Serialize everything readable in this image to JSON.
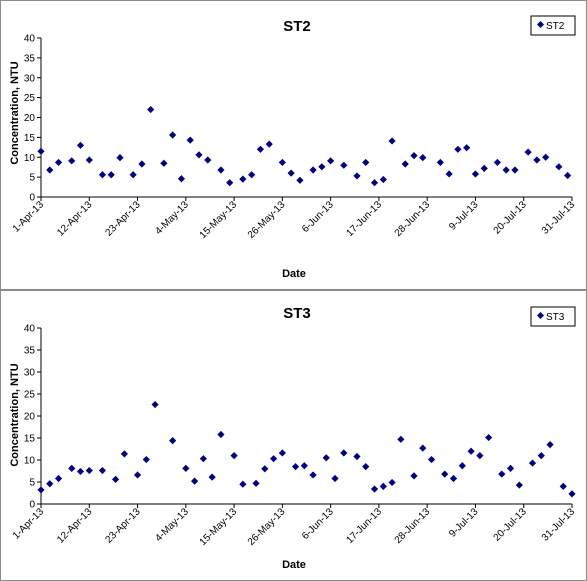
{
  "chart_data": [
    {
      "type": "scatter",
      "title": "ST2",
      "xlabel": "Date",
      "ylabel": "Concentration, NTU",
      "ylim": [
        0,
        40
      ],
      "y_ticks": [
        0,
        5,
        10,
        15,
        20,
        25,
        30,
        35,
        40
      ],
      "xlim": [
        "2013-04-01",
        "2013-07-31"
      ],
      "x_tick_labels": [
        "1-Apr-13",
        "12-Apr-13",
        "23-Apr-13",
        "4-May-13",
        "15-May-13",
        "26-May-13",
        "6-Jun-13",
        "17-Jun-13",
        "28-Jun-13",
        "9-Jul-13",
        "20-Jul-13",
        "31-Jul-13"
      ],
      "grid": false,
      "legend": "top-right",
      "marker_color": "#000080",
      "series": [
        {
          "name": "ST2",
          "points": [
            {
              "x": "2013-04-01",
              "y": 11.5
            },
            {
              "x": "2013-04-03",
              "y": 6.8
            },
            {
              "x": "2013-04-05",
              "y": 8.7
            },
            {
              "x": "2013-04-08",
              "y": 9.1
            },
            {
              "x": "2013-04-10",
              "y": 13.0
            },
            {
              "x": "2013-04-12",
              "y": 9.3
            },
            {
              "x": "2013-04-15",
              "y": 5.6
            },
            {
              "x": "2013-04-17",
              "y": 5.6
            },
            {
              "x": "2013-04-19",
              "y": 9.9
            },
            {
              "x": "2013-04-22",
              "y": 5.6
            },
            {
              "x": "2013-04-24",
              "y": 8.3
            },
            {
              "x": "2013-04-26",
              "y": 22.0
            },
            {
              "x": "2013-04-29",
              "y": 8.5
            },
            {
              "x": "2013-05-01",
              "y": 15.6
            },
            {
              "x": "2013-05-03",
              "y": 4.6
            },
            {
              "x": "2013-05-05",
              "y": 14.3
            },
            {
              "x": "2013-05-07",
              "y": 10.6
            },
            {
              "x": "2013-05-09",
              "y": 9.3
            },
            {
              "x": "2013-05-12",
              "y": 6.8
            },
            {
              "x": "2013-05-14",
              "y": 3.6
            },
            {
              "x": "2013-05-17",
              "y": 4.5
            },
            {
              "x": "2013-05-19",
              "y": 5.6
            },
            {
              "x": "2013-05-21",
              "y": 12.0
            },
            {
              "x": "2013-05-23",
              "y": 13.3
            },
            {
              "x": "2013-05-26",
              "y": 8.7
            },
            {
              "x": "2013-05-28",
              "y": 6.0
            },
            {
              "x": "2013-05-30",
              "y": 4.2
            },
            {
              "x": "2013-06-02",
              "y": 6.8
            },
            {
              "x": "2013-06-04",
              "y": 7.6
            },
            {
              "x": "2013-06-06",
              "y": 9.1
            },
            {
              "x": "2013-06-09",
              "y": 8.0
            },
            {
              "x": "2013-06-12",
              "y": 5.3
            },
            {
              "x": "2013-06-14",
              "y": 8.7
            },
            {
              "x": "2013-06-16",
              "y": 3.6
            },
            {
              "x": "2013-06-18",
              "y": 4.4
            },
            {
              "x": "2013-06-20",
              "y": 14.1
            },
            {
              "x": "2013-06-23",
              "y": 8.3
            },
            {
              "x": "2013-06-25",
              "y": 10.4
            },
            {
              "x": "2013-06-27",
              "y": 9.9
            },
            {
              "x": "2013-07-01",
              "y": 8.7
            },
            {
              "x": "2013-07-03",
              "y": 5.8
            },
            {
              "x": "2013-07-05",
              "y": 12.0
            },
            {
              "x": "2013-07-07",
              "y": 12.4
            },
            {
              "x": "2013-07-09",
              "y": 5.8
            },
            {
              "x": "2013-07-11",
              "y": 7.2
            },
            {
              "x": "2013-07-14",
              "y": 8.7
            },
            {
              "x": "2013-07-16",
              "y": 6.8
            },
            {
              "x": "2013-07-18",
              "y": 6.8
            },
            {
              "x": "2013-07-21",
              "y": 11.3
            },
            {
              "x": "2013-07-23",
              "y": 9.3
            },
            {
              "x": "2013-07-25",
              "y": 10.0
            },
            {
              "x": "2013-07-28",
              "y": 7.6
            },
            {
              "x": "2013-07-30",
              "y": 5.4
            }
          ]
        }
      ]
    },
    {
      "type": "scatter",
      "title": "ST3",
      "xlabel": "Date",
      "ylabel": "Concentration, NTU",
      "ylim": [
        0,
        40
      ],
      "y_ticks": [
        0,
        5,
        10,
        15,
        20,
        25,
        30,
        35,
        40
      ],
      "xlim": [
        "2013-04-01",
        "2013-07-31"
      ],
      "x_tick_labels": [
        "1-Apr-13",
        "12-Apr-13",
        "23-Apr-13",
        "4-May-13",
        "15-May-13",
        "26-May-13",
        "6-Jun-13",
        "17-Jun-13",
        "28-Jun-13",
        "9-Jul-13",
        "20-Jul-13",
        "31-Jul-13"
      ],
      "grid": false,
      "legend": "top-right",
      "marker_color": "#000080",
      "series": [
        {
          "name": "ST3",
          "points": [
            {
              "x": "2013-04-01",
              "y": 3.2
            },
            {
              "x": "2013-04-03",
              "y": 4.6
            },
            {
              "x": "2013-04-05",
              "y": 5.8
            },
            {
              "x": "2013-04-08",
              "y": 8.1
            },
            {
              "x": "2013-04-10",
              "y": 7.4
            },
            {
              "x": "2013-04-12",
              "y": 7.6
            },
            {
              "x": "2013-04-15",
              "y": 7.6
            },
            {
              "x": "2013-04-18",
              "y": 5.6
            },
            {
              "x": "2013-04-20",
              "y": 11.4
            },
            {
              "x": "2013-04-23",
              "y": 6.6
            },
            {
              "x": "2013-04-25",
              "y": 10.1
            },
            {
              "x": "2013-04-27",
              "y": 22.6
            },
            {
              "x": "2013-05-01",
              "y": 14.4
            },
            {
              "x": "2013-05-04",
              "y": 8.1
            },
            {
              "x": "2013-05-06",
              "y": 5.2
            },
            {
              "x": "2013-05-08",
              "y": 10.3
            },
            {
              "x": "2013-05-10",
              "y": 6.1
            },
            {
              "x": "2013-05-12",
              "y": 15.8
            },
            {
              "x": "2013-05-15",
              "y": 11.0
            },
            {
              "x": "2013-05-17",
              "y": 4.5
            },
            {
              "x": "2013-05-20",
              "y": 4.7
            },
            {
              "x": "2013-05-22",
              "y": 8.0
            },
            {
              "x": "2013-05-24",
              "y": 10.3
            },
            {
              "x": "2013-05-26",
              "y": 11.6
            },
            {
              "x": "2013-05-29",
              "y": 8.5
            },
            {
              "x": "2013-05-31",
              "y": 8.7
            },
            {
              "x": "2013-06-02",
              "y": 6.6
            },
            {
              "x": "2013-06-05",
              "y": 10.5
            },
            {
              "x": "2013-06-07",
              "y": 5.8
            },
            {
              "x": "2013-06-09",
              "y": 11.6
            },
            {
              "x": "2013-06-12",
              "y": 10.8
            },
            {
              "x": "2013-06-14",
              "y": 8.5
            },
            {
              "x": "2013-06-16",
              "y": 3.4
            },
            {
              "x": "2013-06-18",
              "y": 4.0
            },
            {
              "x": "2013-06-20",
              "y": 4.9
            },
            {
              "x": "2013-06-22",
              "y": 14.7
            },
            {
              "x": "2013-06-25",
              "y": 6.4
            },
            {
              "x": "2013-06-27",
              "y": 12.7
            },
            {
              "x": "2013-06-29",
              "y": 10.1
            },
            {
              "x": "2013-07-02",
              "y": 6.8
            },
            {
              "x": "2013-07-04",
              "y": 5.8
            },
            {
              "x": "2013-07-06",
              "y": 8.7
            },
            {
              "x": "2013-07-08",
              "y": 12.0
            },
            {
              "x": "2013-07-10",
              "y": 11.0
            },
            {
              "x": "2013-07-12",
              "y": 15.1
            },
            {
              "x": "2013-07-15",
              "y": 6.8
            },
            {
              "x": "2013-07-17",
              "y": 8.1
            },
            {
              "x": "2013-07-19",
              "y": 4.3
            },
            {
              "x": "2013-07-22",
              "y": 9.3
            },
            {
              "x": "2013-07-24",
              "y": 11.0
            },
            {
              "x": "2013-07-26",
              "y": 13.5
            },
            {
              "x": "2013-07-29",
              "y": 4.0
            },
            {
              "x": "2013-07-31",
              "y": 2.3
            }
          ]
        }
      ]
    }
  ]
}
